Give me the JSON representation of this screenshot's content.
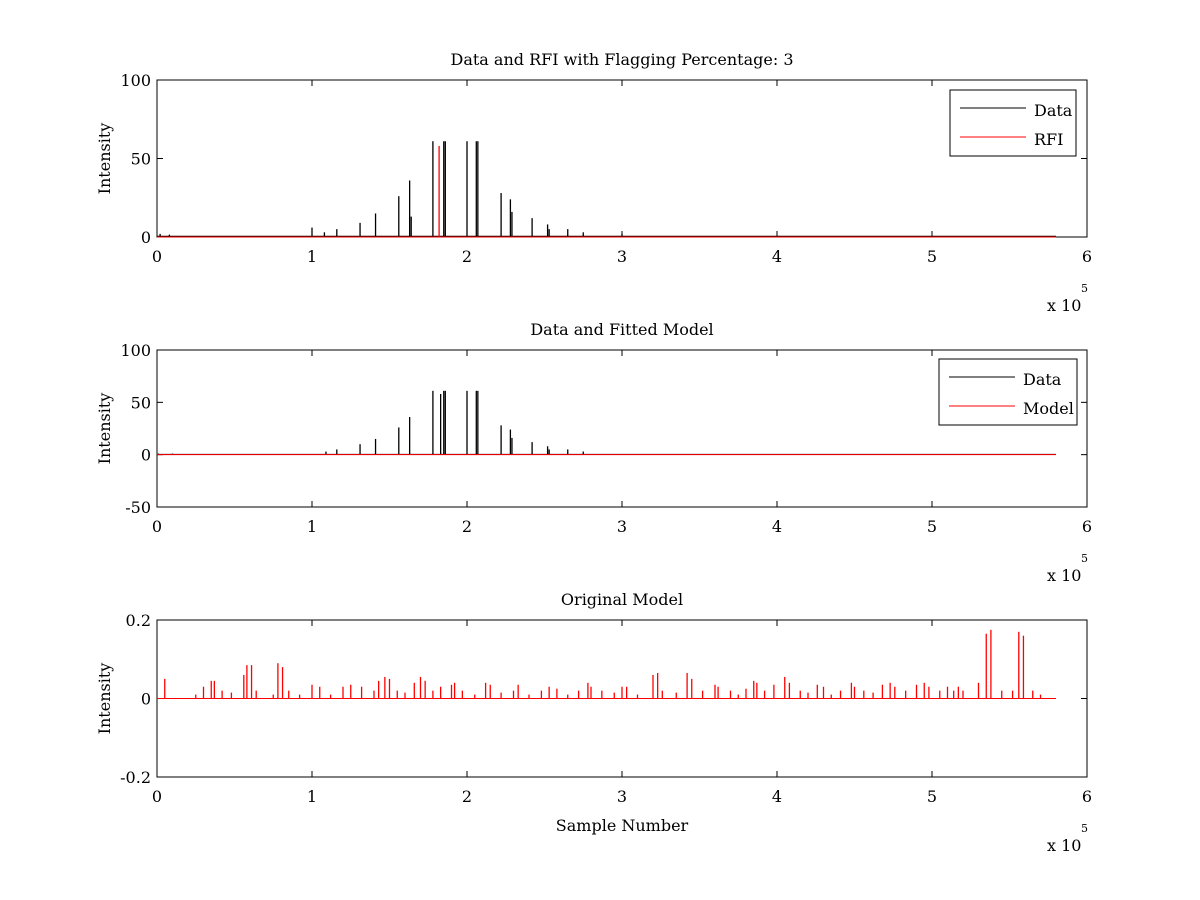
{
  "figure": {
    "background": "#ffffff"
  },
  "chart_data": [
    {
      "type": "line",
      "title": "Data and RFI with Flagging Percentage: 3",
      "xlabel": "",
      "ylabel": "Intensity",
      "xlim": [
        0,
        600000
      ],
      "ylim": [
        0,
        100
      ],
      "xticks": [
        0,
        100000,
        200000,
        300000,
        400000,
        500000,
        600000
      ],
      "xtick_labels": [
        "0",
        "1",
        "2",
        "3",
        "4",
        "5",
        "6"
      ],
      "yticks": [
        0,
        50,
        100
      ],
      "ytick_labels": [
        "0",
        "50",
        "100"
      ],
      "x_multiplier": {
        "base": "x 10",
        "exponent": "5"
      },
      "grid": false,
      "legend": {
        "position": "top-right",
        "entries": [
          {
            "name": "Data",
            "color": "#000000"
          },
          {
            "name": "RFI",
            "color": "#ff0000"
          }
        ]
      },
      "baseline": {
        "x_end": 580000,
        "Data": 0.5,
        "RFI": 0
      },
      "series": [
        {
          "name": "Data",
          "color": "#000000",
          "spikes": [
            [
              2000,
              2
            ],
            [
              8000,
              1.5
            ],
            [
              100000,
              6
            ],
            [
              108000,
              3
            ],
            [
              116000,
              5
            ],
            [
              131000,
              9
            ],
            [
              141000,
              15
            ],
            [
              156000,
              26
            ],
            [
              163000,
              36
            ],
            [
              164000,
              13
            ],
            [
              178000,
              61
            ],
            [
              185000,
              61
            ],
            [
              186000,
              61
            ],
            [
              200000,
              61
            ],
            [
              206000,
              61
            ],
            [
              207000,
              61
            ],
            [
              222000,
              28
            ],
            [
              228000,
              24
            ],
            [
              229000,
              16
            ],
            [
              242000,
              12
            ],
            [
              252000,
              8
            ],
            [
              253000,
              5
            ],
            [
              265000,
              5
            ],
            [
              275000,
              3
            ],
            [
              300000,
              2
            ]
          ]
        },
        {
          "name": "RFI",
          "color": "#ff0000",
          "spikes": [
            [
              182000,
              58
            ]
          ]
        }
      ]
    },
    {
      "type": "line",
      "title": "Data and Fitted Model",
      "xlabel": "",
      "ylabel": "Intensity",
      "xlim": [
        0,
        600000
      ],
      "ylim": [
        -50,
        100
      ],
      "xticks": [
        0,
        100000,
        200000,
        300000,
        400000,
        500000,
        600000
      ],
      "xtick_labels": [
        "0",
        "1",
        "2",
        "3",
        "4",
        "5",
        "6"
      ],
      "yticks": [
        -50,
        0,
        50,
        100
      ],
      "ytick_labels": [
        "-50",
        "0",
        "50",
        "100"
      ],
      "x_multiplier": {
        "base": "x 10",
        "exponent": "5"
      },
      "grid": false,
      "legend": {
        "position": "top-right",
        "entries": [
          {
            "name": "Data",
            "color": "#000000"
          },
          {
            "name": "Model",
            "color": "#ff0000"
          }
        ]
      },
      "baseline": {
        "x_end": 580000,
        "Data": 0.3,
        "Model": 0
      },
      "series": [
        {
          "name": "Data",
          "color": "#000000",
          "spikes": [
            [
              1000,
              1
            ],
            [
              10000,
              1
            ],
            [
              109000,
              3
            ],
            [
              116000,
              5
            ],
            [
              131000,
              10
            ],
            [
              141000,
              15
            ],
            [
              156000,
              26
            ],
            [
              163000,
              36
            ],
            [
              178000,
              61
            ],
            [
              183000,
              58
            ],
            [
              185000,
              61
            ],
            [
              186000,
              61
            ],
            [
              200000,
              61
            ],
            [
              206000,
              61
            ],
            [
              207000,
              61
            ],
            [
              222000,
              28
            ],
            [
              228000,
              24
            ],
            [
              229000,
              16
            ],
            [
              242000,
              12
            ],
            [
              252000,
              8
            ],
            [
              253000,
              5
            ],
            [
              265000,
              5
            ],
            [
              275000,
              3
            ]
          ]
        },
        {
          "name": "Model",
          "color": "#ff0000",
          "spikes": []
        }
      ]
    },
    {
      "type": "line",
      "title": "Original Model",
      "xlabel": "Sample Number",
      "ylabel": "Intensity",
      "xlim": [
        0,
        600000
      ],
      "ylim": [
        -0.2,
        0.2
      ],
      "xticks": [
        0,
        100000,
        200000,
        300000,
        400000,
        500000,
        600000
      ],
      "xtick_labels": [
        "0",
        "1",
        "2",
        "3",
        "4",
        "5",
        "6"
      ],
      "yticks": [
        -0.2,
        0,
        0.2
      ],
      "ytick_labels": [
        "-0.2",
        "0",
        "0.2"
      ],
      "x_multiplier": {
        "base": "x 10",
        "exponent": "5"
      },
      "grid": false,
      "legend": null,
      "baseline": {
        "x_end": 580000,
        "Model": 0
      },
      "series": [
        {
          "name": "Model",
          "color": "#ff0000",
          "spikes": [
            [
              5000,
              0.05
            ],
            [
              25000,
              0.01
            ],
            [
              30000,
              0.03
            ],
            [
              35000,
              0.045
            ],
            [
              37000,
              0.045
            ],
            [
              42000,
              0.02
            ],
            [
              48000,
              0.015
            ],
            [
              56000,
              0.06
            ],
            [
              58000,
              0.085
            ],
            [
              61000,
              0.085
            ],
            [
              64000,
              0.02
            ],
            [
              75000,
              0.01
            ],
            [
              78000,
              0.09
            ],
            [
              81000,
              0.08
            ],
            [
              85000,
              0.02
            ],
            [
              92000,
              0.01
            ],
            [
              100000,
              0.035
            ],
            [
              105000,
              0.03
            ],
            [
              112000,
              0.01
            ],
            [
              120000,
              0.03
            ],
            [
              125000,
              0.035
            ],
            [
              132000,
              0.03
            ],
            [
              140000,
              0.02
            ],
            [
              143000,
              0.045
            ],
            [
              147000,
              0.055
            ],
            [
              150000,
              0.05
            ],
            [
              155000,
              0.02
            ],
            [
              160000,
              0.015
            ],
            [
              166000,
              0.04
            ],
            [
              170000,
              0.055
            ],
            [
              173000,
              0.045
            ],
            [
              178000,
              0.02
            ],
            [
              183000,
              0.03
            ],
            [
              190000,
              0.035
            ],
            [
              192000,
              0.04
            ],
            [
              197000,
              0.02
            ],
            [
              205000,
              0.01
            ],
            [
              212000,
              0.04
            ],
            [
              215000,
              0.035
            ],
            [
              222000,
              0.015
            ],
            [
              230000,
              0.02
            ],
            [
              233000,
              0.035
            ],
            [
              240000,
              0.01
            ],
            [
              248000,
              0.02
            ],
            [
              253000,
              0.03
            ],
            [
              258000,
              0.025
            ],
            [
              265000,
              0.01
            ],
            [
              272000,
              0.02
            ],
            [
              278000,
              0.04
            ],
            [
              280000,
              0.03
            ],
            [
              287000,
              0.02
            ],
            [
              295000,
              0.015
            ],
            [
              300000,
              0.03
            ],
            [
              303000,
              0.03
            ],
            [
              310000,
              0.01
            ],
            [
              320000,
              0.06
            ],
            [
              323000,
              0.065
            ],
            [
              326000,
              0.02
            ],
            [
              335000,
              0.015
            ],
            [
              342000,
              0.065
            ],
            [
              345000,
              0.05
            ],
            [
              352000,
              0.02
            ],
            [
              360000,
              0.035
            ],
            [
              362000,
              0.03
            ],
            [
              370000,
              0.02
            ],
            [
              375000,
              0.01
            ],
            [
              380000,
              0.025
            ],
            [
              385000,
              0.045
            ],
            [
              387000,
              0.04
            ],
            [
              392000,
              0.02
            ],
            [
              398000,
              0.035
            ],
            [
              405000,
              0.055
            ],
            [
              408000,
              0.04
            ],
            [
              415000,
              0.02
            ],
            [
              420000,
              0.015
            ],
            [
              426000,
              0.035
            ],
            [
              430000,
              0.03
            ],
            [
              435000,
              0.01
            ],
            [
              441000,
              0.02
            ],
            [
              448000,
              0.04
            ],
            [
              450000,
              0.03
            ],
            [
              456000,
              0.02
            ],
            [
              462000,
              0.015
            ],
            [
              468000,
              0.035
            ],
            [
              473000,
              0.04
            ],
            [
              476000,
              0.03
            ],
            [
              483000,
              0.02
            ],
            [
              490000,
              0.035
            ],
            [
              495000,
              0.04
            ],
            [
              498000,
              0.03
            ],
            [
              505000,
              0.02
            ],
            [
              510000,
              0.03
            ],
            [
              514000,
              0.02
            ],
            [
              517000,
              0.03
            ],
            [
              520000,
              0.02
            ],
            [
              530000,
              0.04
            ],
            [
              535000,
              0.165
            ],
            [
              538000,
              0.175
            ],
            [
              545000,
              0.02
            ],
            [
              552000,
              0.02
            ],
            [
              556000,
              0.17
            ],
            [
              559000,
              0.16
            ],
            [
              565000,
              0.02
            ],
            [
              570000,
              0.01
            ]
          ]
        }
      ]
    }
  ]
}
